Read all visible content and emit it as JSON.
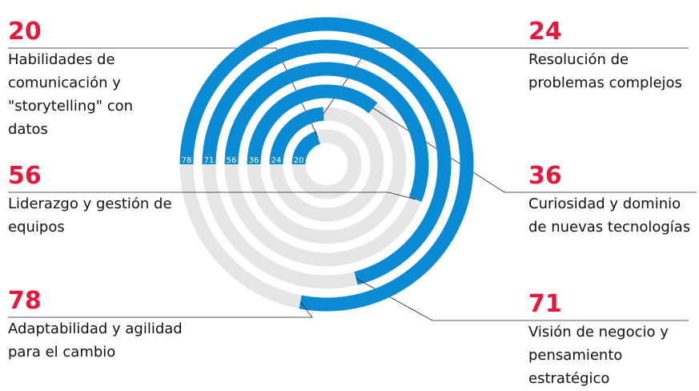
{
  "chart_data": {
    "type": "radial_bar",
    "categories": [
      "Habilidades de comunicación y \"storytelling\" con datos",
      "Resolución de problemas complejos",
      "Curiosidad y dominio de nuevas tecnologías",
      "Liderazgo y gestión de equipos",
      "Visión de negocio y pensamiento estratégico",
      "Adaptabilidad y agilidad para el cambio"
    ],
    "values": [
      20,
      24,
      36,
      56,
      71,
      78
    ],
    "color": "#0a8ad2",
    "track_color": "#e6e6e6",
    "label_color": "#e8173c"
  }
}
